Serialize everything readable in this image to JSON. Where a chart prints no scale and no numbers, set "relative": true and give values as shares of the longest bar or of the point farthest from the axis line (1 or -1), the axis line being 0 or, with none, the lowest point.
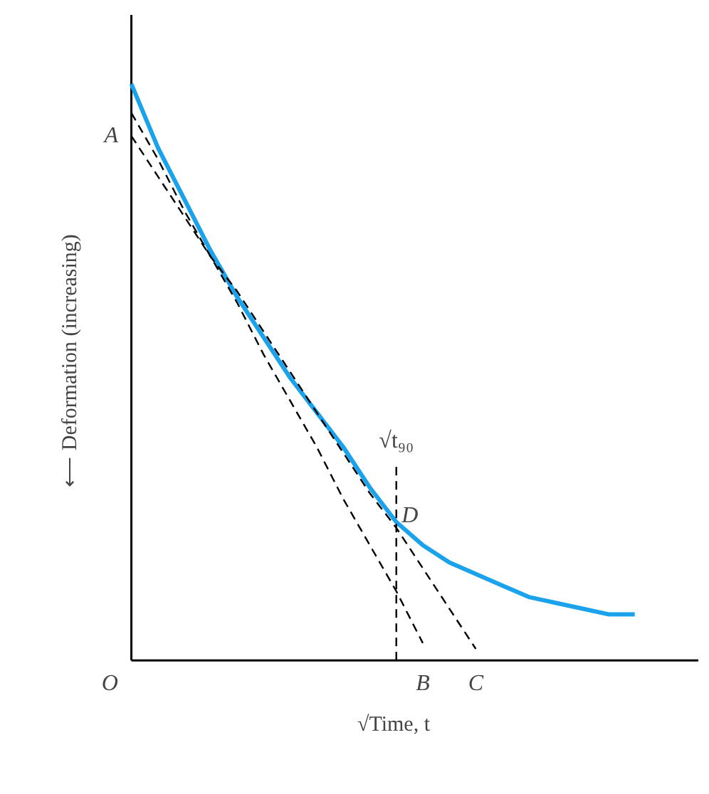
{
  "chart_data": {
    "type": "line",
    "relative": true,
    "xlabel": "√Time, t",
    "ylabel": "⟵ Deformation (increasing)",
    "categories": [
      null,
      null,
      null,
      null,
      null,
      null,
      null,
      null,
      null,
      null,
      null,
      null,
      null,
      null,
      null,
      null,
      null,
      null,
      null,
      null
    ],
    "series": [
      {
        "color": "#1aa3ec",
        "line_style": "solid",
        "values": [
          1,
          0.89,
          0.8,
          0.71,
          0.63,
          0.56,
          0.49,
          0.43,
          0.37,
          0.3,
          0.24,
          0.2,
          0.17,
          0.15,
          0.13,
          0.11,
          0.1,
          0.09,
          0.08,
          0.08
        ]
      },
      {
        "color": "#000000",
        "line_style": "dashed",
        "values": [
          0.91,
          0.84,
          0.77,
          0.7,
          0.64,
          0.57,
          0.5,
          0.43,
          0.36,
          0.29,
          0.23,
          0.16,
          0.09,
          0.02,
          null,
          null,
          null,
          null,
          null,
          null
        ]
      },
      {
        "color": "#000000",
        "line_style": "dashed",
        "values": [
          0.95,
          0.87,
          0.78,
          0.7,
          0.62,
          0.53,
          0.45,
          0.37,
          0.28,
          0.2,
          0.12,
          0.03,
          null,
          null,
          null,
          null,
          null,
          null,
          null,
          null
        ]
      }
    ],
    "annotations": [
      "A",
      "O",
      "B",
      "C",
      "D",
      "√t₉₀"
    ]
  }
}
